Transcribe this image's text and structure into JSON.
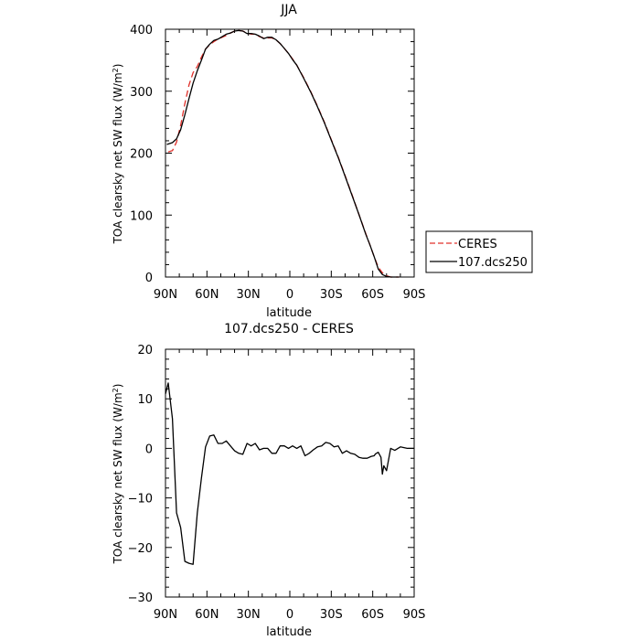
{
  "chart_data": [
    {
      "type": "line",
      "title": "JJA",
      "xlabel": "latitude",
      "ylabel": "TOA clearsky net SW flux (W/m",
      "ylabel_sup": "2",
      "ylabel_end": ")",
      "xlim": [
        90,
        -90
      ],
      "ylim": [
        0,
        400
      ],
      "x_ticks": [
        90,
        60,
        30,
        0,
        -30,
        -60,
        -90
      ],
      "x_tick_labels": [
        "90N",
        "60N",
        "30N",
        "0",
        "30S",
        "60S",
        "90S"
      ],
      "y_ticks": [
        0,
        100,
        200,
        300,
        400
      ],
      "y_tick_labels": [
        "0",
        "100",
        "200",
        "300",
        "400"
      ],
      "legend_position": "outside-right",
      "series": [
        {
          "name": "CERES",
          "color": "#e0302a",
          "dash": "dashed",
          "x": [
            88,
            85,
            82,
            79,
            76,
            73,
            70,
            67,
            64,
            61,
            58,
            55,
            52,
            49,
            46,
            43,
            40,
            37,
            34,
            31,
            28,
            25,
            22,
            19,
            16,
            13,
            10,
            7,
            4,
            1,
            -2,
            -5,
            -10,
            -15,
            -20,
            -25,
            -30,
            -35,
            -40,
            -45,
            -50,
            -55,
            -58,
            -61,
            -64,
            -67,
            -70,
            -73,
            -76,
            -79
          ],
          "y": [
            202,
            204,
            218,
            245,
            280,
            310,
            330,
            340,
            355,
            368,
            375,
            380,
            384,
            387,
            390,
            394,
            397,
            398,
            397,
            394,
            392,
            392,
            388,
            386,
            386,
            386,
            383,
            377,
            369,
            361,
            352,
            342,
            322,
            300,
            276,
            250,
            222,
            194,
            164,
            133,
            101,
            70,
            52,
            33,
            16,
            7,
            2,
            0,
            0,
            0
          ]
        },
        {
          "name": "107.dcs250",
          "color": "#000000",
          "dash": "solid",
          "x": [
            89,
            85,
            82,
            79,
            76,
            73,
            70,
            67,
            64,
            61,
            58,
            55,
            52,
            49,
            46,
            43,
            40,
            37,
            34,
            31,
            28,
            25,
            22,
            19,
            16,
            13,
            10,
            7,
            4,
            1,
            -2,
            -5,
            -10,
            -15,
            -20,
            -25,
            -30,
            -35,
            -40,
            -45,
            -50,
            -55,
            -58,
            -61,
            -64,
            -67,
            -70,
            -73,
            -76,
            -79
          ],
          "y": [
            214,
            217,
            223,
            238,
            262,
            288,
            313,
            333,
            350,
            368,
            376,
            382,
            384,
            388,
            392,
            394,
            397,
            398,
            397,
            393,
            393,
            392,
            389,
            385,
            387,
            387,
            383,
            377,
            369,
            361,
            351,
            342,
            321,
            299,
            275,
            249,
            221,
            193,
            163,
            132,
            101,
            69,
            52,
            33,
            13,
            4,
            1,
            0,
            0,
            0
          ]
        }
      ]
    },
    {
      "type": "line",
      "title": "107.dcs250 - CERES",
      "xlabel": "latitude",
      "ylabel": "TOA clearsky net SW flux (W/m",
      "ylabel_sup": "2",
      "ylabel_end": ")",
      "xlim": [
        90,
        -90
      ],
      "ylim": [
        -30,
        20
      ],
      "x_ticks": [
        90,
        60,
        30,
        0,
        -30,
        -60,
        -90
      ],
      "x_tick_labels": [
        "90N",
        "60N",
        "30N",
        "0",
        "30S",
        "60S",
        "90S"
      ],
      "y_ticks": [
        -30,
        -20,
        -10,
        0,
        10,
        20
      ],
      "y_tick_labels": [
        "−30",
        "−20",
        "−10",
        "0",
        "10",
        "20"
      ],
      "series": [
        {
          "color": "#000000",
          "dash": "solid",
          "x": [
            90,
            88,
            85,
            82,
            79,
            76,
            73,
            70,
            67,
            64,
            61,
            58,
            55,
            52,
            49,
            46,
            43,
            40,
            37,
            34,
            31,
            28,
            25,
            22,
            19,
            16,
            13,
            10,
            7,
            4,
            1,
            -2,
            -5,
            -8,
            -11,
            -14,
            -17,
            -20,
            -23,
            -26,
            -29,
            -32,
            -35,
            -38,
            -41,
            -44,
            -47,
            -50,
            -53,
            -56,
            -59,
            -61,
            -62,
            -64,
            -66,
            -67,
            -68,
            -70,
            -73,
            -76,
            -80,
            -85,
            -90
          ],
          "y": [
            11,
            13.2,
            6,
            -13,
            -16,
            -22.8,
            -23.2,
            -23.4,
            -13,
            -6,
            0.3,
            2.5,
            2.7,
            1,
            1,
            1.5,
            0.5,
            -0.5,
            -1,
            -1.2,
            1,
            0.5,
            1,
            -0.3,
            0,
            0,
            -1,
            -1,
            0.5,
            0.5,
            0,
            0.5,
            0,
            0.5,
            -1.5,
            -1,
            -0.3,
            0.3,
            0.5,
            1.2,
            1,
            0.3,
            0.5,
            -1,
            -0.5,
            -1,
            -1.2,
            -1.8,
            -2,
            -2,
            -1.6,
            -1.5,
            -1.1,
            -0.8,
            -1.8,
            -5.2,
            -3.5,
            -4.5,
            0,
            -0.4,
            0.3,
            0,
            0
          ]
        }
      ]
    }
  ]
}
